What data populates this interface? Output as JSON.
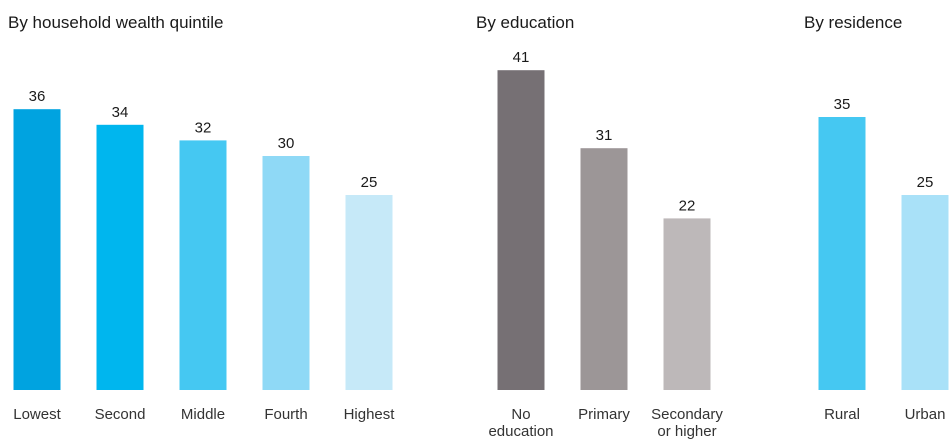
{
  "chart_data": [
    {
      "type": "bar",
      "title": "By household wealth quintile",
      "categories": [
        "Lowest",
        "Second",
        "Middle",
        "Fourth",
        "Highest"
      ],
      "values": [
        36,
        34,
        32,
        30,
        25
      ],
      "colors": [
        "#00a3e0",
        "#00b6ee",
        "#45c8f2",
        "#8fd9f6",
        "#c6e9f8"
      ],
      "xlabel": "",
      "ylabel": "",
      "ylim": [
        0,
        41
      ],
      "grid": false
    },
    {
      "type": "bar",
      "title": "By education",
      "categories": [
        "No education",
        "Primary",
        "Secondary or higher"
      ],
      "values": [
        41,
        31,
        22
      ],
      "colors": [
        "#767074",
        "#9c9697",
        "#bdb8b9"
      ],
      "xlabel": "",
      "ylabel": "",
      "ylim": [
        0,
        41
      ],
      "grid": false
    },
    {
      "type": "bar",
      "title": "By residence",
      "categories": [
        "Rural",
        "Urban"
      ],
      "values": [
        35,
        25
      ],
      "colors": [
        "#45c8f2",
        "#a9e1f8"
      ],
      "xlabel": "",
      "ylabel": "",
      "ylim": [
        0,
        41
      ],
      "grid": false
    }
  ]
}
